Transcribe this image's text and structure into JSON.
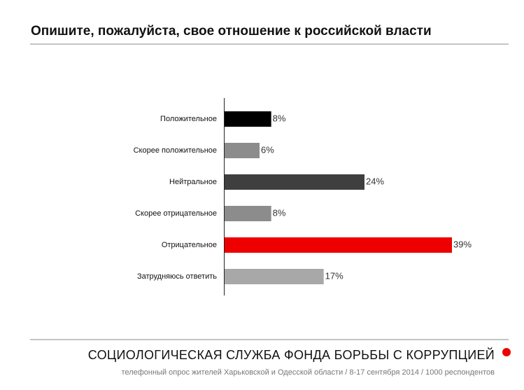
{
  "chart_data": {
    "type": "bar",
    "orientation": "horizontal",
    "title": "Опишите, пожалуйста, свое отношение к российской власти",
    "categories": [
      "Положительное",
      "Скорее положительное",
      "Нейтральное",
      "Скорее отрицательное",
      "Отрицательное",
      "Затрудняюсь ответить"
    ],
    "values": [
      8,
      6,
      24,
      8,
      39,
      17
    ],
    "value_labels": [
      "8%",
      "6%",
      "24%",
      "8%",
      "39%",
      "17%"
    ],
    "colors": [
      "#000000",
      "#8c8c8c",
      "#3f3f3f",
      "#8c8c8c",
      "#ee0000",
      "#a8a8a8"
    ]
  },
  "footer": {
    "organization": "СОЦИОЛОГИЧЕСКАЯ СЛУЖБА ФОНДА БОРЬБЫ С КОРРУПЦИЕЙ",
    "note": "телефонный опрос жителей Харьковской и Одесской области / 8-17 сентября 2014 / 1000 респондентов"
  }
}
